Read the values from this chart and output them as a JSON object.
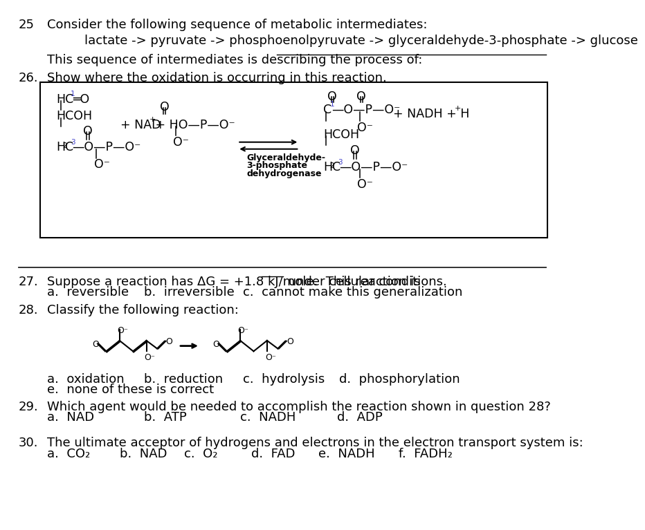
{
  "bg_color": "#ffffff",
  "text_color": "#000000",
  "q25_num": "25",
  "q25_text": "Consider the following sequence of metabolic intermediates:",
  "q25_sequence": "lactate -> pyruvate -> phosphoenolpyruvate -> glyceraldehyde-3-phosphate -> glucose",
  "q25_fill": "This sequence of intermediates is describing the process of:  ",
  "q26_num": "26.",
  "q26_text": "Show where the oxidation is occurring in this reaction.",
  "q27_num": "27.",
  "q27_text1": "Suppose a reaction has ΔG = +1.8 kJ/mole.  This reaction is ",
  "q27_text2": " under cellular conditions.",
  "q27_a": "a.  reversible",
  "q27_b": "b.  irreversible",
  "q27_c": "c.  cannot make this generalization",
  "q28_num": "28.",
  "q28_text": "Classify the following reaction:",
  "q28_a": "a.  oxidation",
  "q28_b": "b.  reduction",
  "q28_c": "c.  hydrolysis",
  "q28_d": "d.  phosphorylation",
  "q28_e": "e.  none of these is correct",
  "q29_num": "29.",
  "q29_text": "Which agent would be needed to accomplish the reaction shown in question 28?",
  "q29_a": "a.  NAD",
  "q29_b": "b.  ATP",
  "q29_c": "c.  NADH",
  "q29_d": "d.  ADP",
  "q30_num": "30.",
  "q30_text": "The ultimate acceptor of hydrogens and electrons in the electron transport system is:",
  "q30_a": "a.  CO₂",
  "q30_b": "b.  NAD",
  "q30_c": "c.  O₂",
  "q30_d": "d.  FAD",
  "q30_e": "e.  NADH",
  "q30_f": "f.  FADH₂",
  "main_font_size": 13.0,
  "chem_font_size": 12.5,
  "small_font_size": 9.5
}
